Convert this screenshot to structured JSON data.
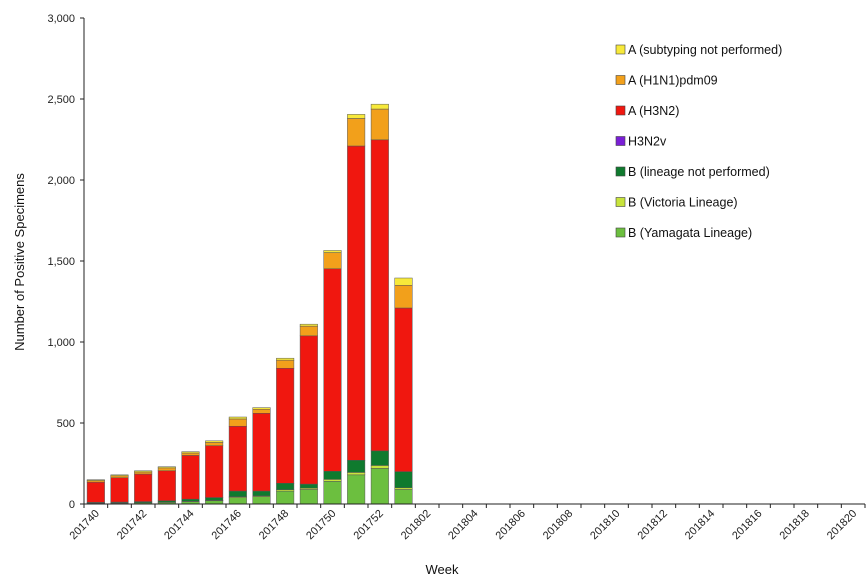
{
  "chart_data": {
    "type": "bar",
    "stacked": true,
    "xlabel": "Week",
    "ylabel": "Number of Positive Specimens",
    "ylim": [
      0,
      3000
    ],
    "yticks": [
      0,
      500,
      1000,
      1500,
      2000,
      2500,
      3000
    ],
    "ytick_labels": [
      "0",
      "500",
      "1,000",
      "1,500",
      "2,000",
      "2,500",
      "3,000"
    ],
    "categories": [
      "201740",
      "201741",
      "201742",
      "201743",
      "201744",
      "201745",
      "201746",
      "201747",
      "201748",
      "201749",
      "201750",
      "201751",
      "201752",
      "201801",
      "201802",
      "201803",
      "201804",
      "201805",
      "201806",
      "201807",
      "201808",
      "201809",
      "201810",
      "201811",
      "201812",
      "201813",
      "201814",
      "201815",
      "201816",
      "201817",
      "201818",
      "201819",
      "201820"
    ],
    "xtick_labels": [
      "201740",
      "",
      "201742",
      "",
      "201744",
      "",
      "201746",
      "",
      "201748",
      "",
      "201750",
      "",
      "201752",
      "",
      "201802",
      "",
      "201804",
      "",
      "201806",
      "",
      "201808",
      "",
      "201810",
      "",
      "201812",
      "",
      "201814",
      "",
      "201816",
      "",
      "201818",
      "",
      "201820"
    ],
    "series": [
      {
        "name": "B (Yamagata Lineage)",
        "color": "#6cbf3f",
        "values": [
          5,
          6,
          7,
          10,
          15,
          20,
          40,
          45,
          80,
          90,
          140,
          180,
          220,
          90,
          0,
          0,
          0,
          0,
          0,
          0,
          0,
          0,
          0,
          0,
          0,
          0,
          0,
          0,
          0,
          0,
          0,
          0,
          0
        ]
      },
      {
        "name": "B (Victoria Lineage)",
        "color": "#c8e43c",
        "values": [
          1,
          1,
          1,
          2,
          2,
          3,
          5,
          5,
          8,
          8,
          12,
          15,
          18,
          10,
          0,
          0,
          0,
          0,
          0,
          0,
          0,
          0,
          0,
          0,
          0,
          0,
          0,
          0,
          0,
          0,
          0,
          0,
          0
        ]
      },
      {
        "name": "B (lineage not performed)",
        "color": "#0f7a2e",
        "values": [
          4,
          5,
          7,
          8,
          13,
          17,
          35,
          30,
          40,
          25,
          50,
          75,
          90,
          100,
          0,
          0,
          0,
          0,
          0,
          0,
          0,
          0,
          0,
          0,
          0,
          0,
          0,
          0,
          0,
          0,
          0,
          0,
          0
        ]
      },
      {
        "name": "H3N2v",
        "color": "#7a1fd6",
        "values": [
          0,
          0,
          0,
          0,
          0,
          0,
          0,
          0,
          0,
          0,
          0,
          0,
          0,
          0,
          0,
          0,
          0,
          0,
          0,
          0,
          0,
          0,
          0,
          0,
          0,
          0,
          0,
          0,
          0,
          0,
          0,
          0,
          0
        ]
      },
      {
        "name": "A (H3N2)",
        "color": "#f0170f",
        "values": [
          125,
          150,
          170,
          185,
          270,
          320,
          400,
          480,
          710,
          915,
          1250,
          1940,
          1920,
          1010,
          0,
          0,
          0,
          0,
          0,
          0,
          0,
          0,
          0,
          0,
          0,
          0,
          0,
          0,
          0,
          0,
          0,
          0,
          0
        ]
      },
      {
        "name": "A (H1N1)pdm09",
        "color": "#f2a01b",
        "values": [
          10,
          12,
          13,
          18,
          15,
          20,
          45,
          25,
          50,
          60,
          100,
          170,
          190,
          140,
          0,
          0,
          0,
          0,
          0,
          0,
          0,
          0,
          0,
          0,
          0,
          0,
          0,
          0,
          0,
          0,
          0,
          0,
          0
        ]
      },
      {
        "name": "A (subtyping not performed)",
        "color": "#f7e93a",
        "values": [
          5,
          6,
          7,
          7,
          8,
          10,
          12,
          10,
          12,
          12,
          13,
          25,
          30,
          45,
          0,
          0,
          0,
          0,
          0,
          0,
          0,
          0,
          0,
          0,
          0,
          0,
          0,
          0,
          0,
          0,
          0,
          0,
          0
        ]
      }
    ],
    "legend_order": [
      "A (subtyping not performed)",
      "A (H1N1)pdm09",
      "A (H3N2)",
      "H3N2v",
      "B (lineage not performed)",
      "B (Victoria Lineage)",
      "B (Yamagata Lineage)"
    ],
    "legend_placement": "top-right",
    "grid": false
  }
}
